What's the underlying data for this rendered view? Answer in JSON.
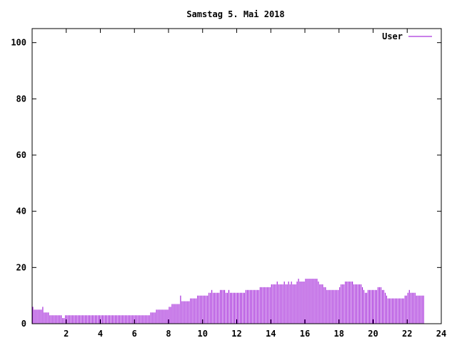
{
  "chart_data": {
    "type": "bar",
    "title": "Samstag 5. Mai 2018",
    "xlabel": "",
    "ylabel": "",
    "xlim": [
      0,
      24
    ],
    "ylim": [
      0,
      105
    ],
    "x_ticks": [
      2,
      4,
      6,
      8,
      10,
      12,
      14,
      16,
      18,
      20,
      22,
      24
    ],
    "y_ticks": [
      0,
      20,
      40,
      60,
      80,
      100
    ],
    "grid": false,
    "legend_position": "top-right",
    "series": [
      {
        "name": "User",
        "color": "#9400d3",
        "x_step_minutes": 5,
        "values": [
          6,
          5,
          5,
          5,
          5,
          5,
          5,
          6,
          4,
          4,
          4,
          4,
          3,
          3,
          3,
          3,
          3,
          3,
          3,
          3,
          3,
          2,
          2,
          3,
          3,
          3,
          3,
          3,
          3,
          3,
          3,
          3,
          3,
          3,
          3,
          3,
          3,
          3,
          3,
          3,
          3,
          3,
          3,
          3,
          3,
          3,
          3,
          3,
          3,
          3,
          3,
          3,
          3,
          3,
          3,
          3,
          3,
          3,
          3,
          3,
          3,
          3,
          3,
          3,
          3,
          3,
          3,
          3,
          3,
          3,
          3,
          3,
          3,
          3,
          3,
          3,
          3,
          3,
          3,
          3,
          3,
          3,
          3,
          4,
          4,
          4,
          4,
          5,
          5,
          5,
          5,
          5,
          5,
          5,
          5,
          5,
          6,
          6,
          7,
          7,
          7,
          7,
          7,
          7,
          10,
          8,
          8,
          8,
          8,
          8,
          8,
          9,
          9,
          9,
          9,
          9,
          10,
          10,
          10,
          10,
          10,
          10,
          10,
          10,
          11,
          11,
          12,
          11,
          11,
          11,
          11,
          11,
          12,
          12,
          12,
          12,
          11,
          11,
          12,
          11,
          11,
          11,
          11,
          11,
          11,
          11,
          11,
          11,
          11,
          11,
          12,
          12,
          12,
          12,
          12,
          12,
          12,
          12,
          12,
          12,
          13,
          13,
          13,
          13,
          13,
          13,
          13,
          13,
          14,
          14,
          14,
          14,
          15,
          14,
          14,
          14,
          14,
          15,
          14,
          14,
          15,
          14,
          15,
          14,
          14,
          14,
          15,
          16,
          15,
          15,
          15,
          15,
          16,
          16,
          16,
          16,
          16,
          16,
          16,
          16,
          16,
          15,
          14,
          14,
          14,
          13,
          13,
          12,
          12,
          12,
          12,
          12,
          12,
          12,
          12,
          12,
          13,
          14,
          14,
          14,
          15,
          15,
          15,
          15,
          15,
          15,
          14,
          14,
          14,
          14,
          14,
          14,
          13,
          12,
          11,
          11,
          12,
          12,
          12,
          12,
          12,
          12,
          12,
          13,
          13,
          13,
          12,
          12,
          11,
          10,
          9,
          9,
          9,
          9,
          9,
          9,
          9,
          9,
          9,
          9,
          9,
          9,
          10,
          10,
          11,
          12,
          11,
          11,
          11,
          11,
          10,
          10,
          10,
          10,
          10,
          10
        ]
      }
    ]
  }
}
